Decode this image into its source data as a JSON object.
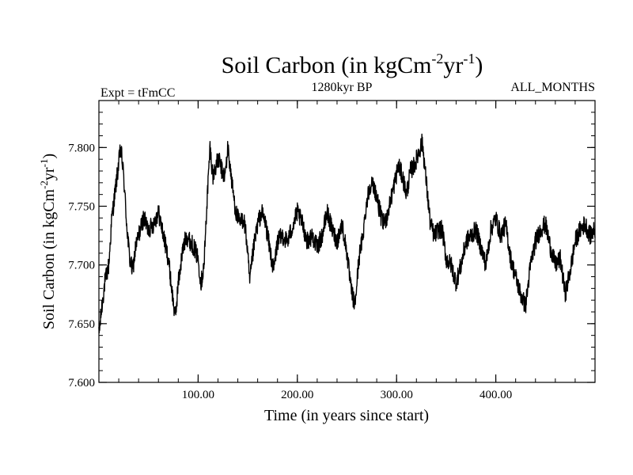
{
  "chart_data": {
    "type": "line",
    "title": {
      "main": "Soil Carbon (in kgCm",
      "sup1": "-2",
      "mid": "yr",
      "sup2": "-1",
      "end": ")"
    },
    "subtitle_left": "Expt = tFmCC",
    "subtitle_center": "1280kyr BP",
    "subtitle_right": "ALL_MONTHS",
    "xlabel": "Time (in years since start)",
    "ylabel": {
      "main": "Soil Carbon (in kgCm",
      "sup1": "-2",
      "mid": "yr",
      "sup2": "-1",
      "end": ")"
    },
    "xlim": [
      0,
      500
    ],
    "ylim": [
      7.6,
      7.84
    ],
    "xticks": [
      100,
      200,
      300,
      400
    ],
    "xtick_labels": [
      "100.00",
      "200.00",
      "300.00",
      "400.00"
    ],
    "xminor_step": 20,
    "yticks": [
      7.6,
      7.65,
      7.7,
      7.75,
      7.8
    ],
    "ytick_labels": [
      "7.600",
      "7.650",
      "7.700",
      "7.750",
      "7.800"
    ],
    "yminor_step": 0.01,
    "noise_amplitude": 0.008,
    "series": [
      {
        "name": "Soil Carbon",
        "color": "#000000",
        "x": [
          0,
          3,
          6,
          10,
          13,
          16,
          19,
          22,
          25,
          28,
          31,
          34,
          37,
          40,
          45,
          50,
          55,
          60,
          65,
          70,
          74,
          77,
          80,
          84,
          88,
          92,
          96,
          100,
          103,
          106,
          109,
          112,
          115,
          118,
          121,
          124,
          127,
          130,
          134,
          138,
          142,
          146,
          149,
          152,
          156,
          160,
          164,
          168,
          172,
          176,
          180,
          185,
          190,
          196,
          200,
          205,
          210,
          215,
          220,
          225,
          230,
          235,
          240,
          245,
          250,
          254,
          258,
          262,
          266,
          270,
          274,
          278,
          282,
          286,
          290,
          294,
          298,
          302,
          306,
          310,
          314,
          318,
          322,
          326,
          330,
          334,
          338,
          342,
          346,
          350,
          355,
          360,
          365,
          370,
          375,
          380,
          385,
          390,
          395,
          400,
          405,
          410,
          415,
          420,
          425,
          430,
          435,
          440,
          445,
          450,
          455,
          460,
          465,
          470,
          475,
          480,
          485,
          490,
          495,
          500
        ],
        "y": [
          7.64,
          7.665,
          7.685,
          7.7,
          7.74,
          7.76,
          7.78,
          7.8,
          7.775,
          7.735,
          7.705,
          7.695,
          7.715,
          7.725,
          7.74,
          7.73,
          7.735,
          7.745,
          7.725,
          7.705,
          7.675,
          7.655,
          7.685,
          7.71,
          7.725,
          7.72,
          7.715,
          7.705,
          7.685,
          7.7,
          7.755,
          7.8,
          7.775,
          7.785,
          7.79,
          7.78,
          7.775,
          7.8,
          7.77,
          7.745,
          7.735,
          7.74,
          7.72,
          7.685,
          7.715,
          7.735,
          7.745,
          7.735,
          7.715,
          7.695,
          7.72,
          7.725,
          7.72,
          7.735,
          7.745,
          7.735,
          7.72,
          7.725,
          7.715,
          7.725,
          7.745,
          7.73,
          7.72,
          7.735,
          7.71,
          7.68,
          7.665,
          7.705,
          7.725,
          7.755,
          7.77,
          7.765,
          7.75,
          7.735,
          7.74,
          7.755,
          7.77,
          7.785,
          7.775,
          7.76,
          7.78,
          7.785,
          7.795,
          7.805,
          7.77,
          7.735,
          7.725,
          7.73,
          7.73,
          7.705,
          7.7,
          7.685,
          7.7,
          7.72,
          7.725,
          7.73,
          7.715,
          7.7,
          7.73,
          7.74,
          7.725,
          7.735,
          7.705,
          7.69,
          7.675,
          7.665,
          7.7,
          7.72,
          7.73,
          7.735,
          7.715,
          7.7,
          7.705,
          7.675,
          7.695,
          7.72,
          7.73,
          7.735,
          7.725,
          7.73
        ]
      }
    ]
  }
}
